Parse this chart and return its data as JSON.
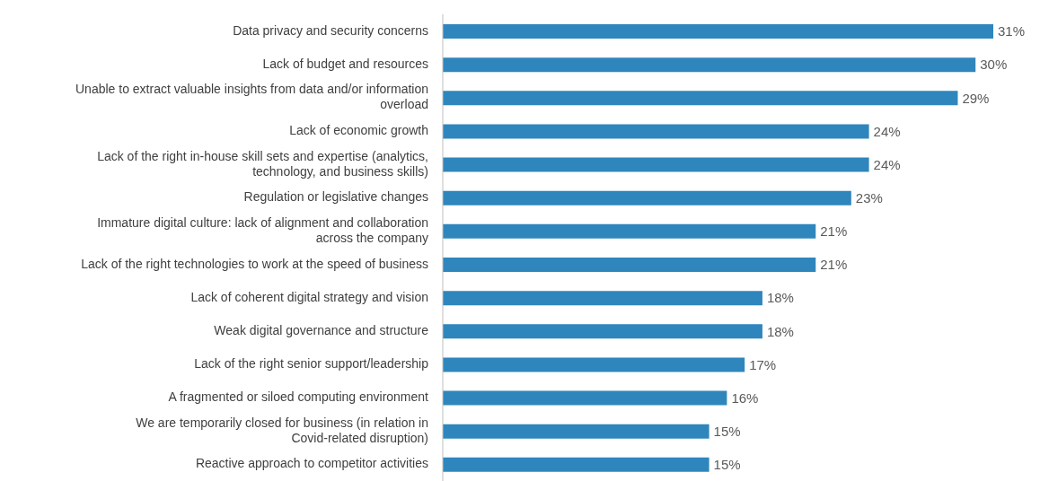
{
  "chart_data": {
    "type": "bar",
    "orientation": "horizontal",
    "categories": [
      "Data privacy and security concerns",
      "Lack of budget and resources",
      "Unable to extract valuable insights from data and/or information overload",
      "Lack of economic growth",
      "Lack of the right in-house skill sets and expertise (analytics, technology, and business skills)",
      "Regulation or legislative changes",
      "Immature digital culture: lack of alignment and collaboration across the company",
      "Lack of the right technologies to work at the speed of business",
      "Lack of coherent digital strategy and vision",
      "Weak digital governance and structure",
      "Lack of the right senior support/leadership",
      "A fragmented or siloed computing environment",
      "We are temporarily closed for business (in relation in Covid-related disruption)",
      "Reactive approach to competitor activities"
    ],
    "values": [
      31,
      30,
      29,
      24,
      24,
      23,
      21,
      21,
      18,
      18,
      17,
      16,
      15,
      15
    ],
    "value_labels": [
      "31%",
      "30%",
      "29%",
      "24%",
      "24%",
      "23%",
      "21%",
      "21%",
      "18%",
      "18%",
      "17%",
      "16%",
      "15%",
      "15%"
    ],
    "color": "#2f86bd"
  }
}
